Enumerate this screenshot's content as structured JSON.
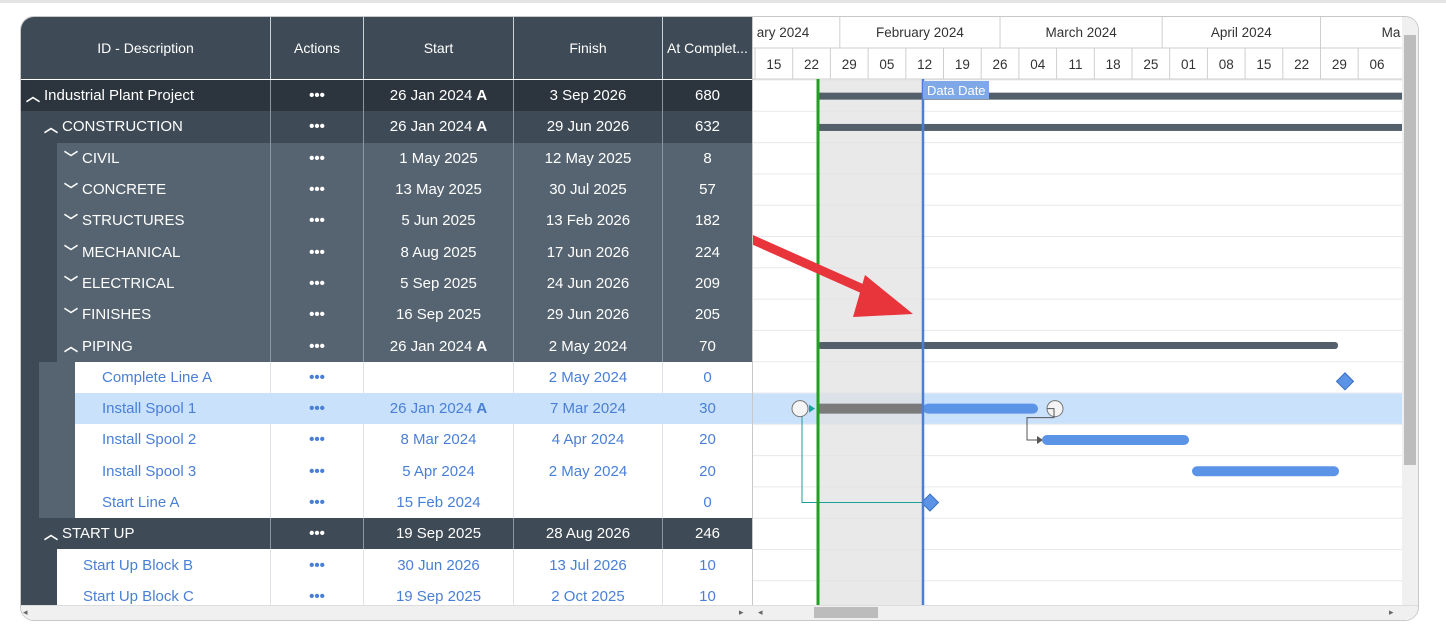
{
  "columns": {
    "desc": "ID - Description",
    "actions": "Actions",
    "start": "Start",
    "finish": "Finish",
    "atc": "At Complet..."
  },
  "rows": [
    {
      "level": 0,
      "chevron": "up",
      "name": "Industrial Plant Project",
      "actions": "•••",
      "start": "26 Jan 2024",
      "start_actual": "A",
      "finish": "3 Sep 2026",
      "atc": "680"
    },
    {
      "level": 1,
      "chevron": "up",
      "name": "CONSTRUCTION",
      "actions": "•••",
      "start": "26 Jan 2024",
      "start_actual": "A",
      "finish": "29 Jun 2026",
      "atc": "632"
    },
    {
      "level": 2,
      "chevron": "down",
      "name": "CIVIL",
      "actions": "•••",
      "start": "1 May 2025",
      "start_actual": "",
      "finish": "12 May 2025",
      "atc": "8"
    },
    {
      "level": 2,
      "chevron": "down",
      "name": "CONCRETE",
      "actions": "•••",
      "start": "13 May 2025",
      "start_actual": "",
      "finish": "30 Jul 2025",
      "atc": "57"
    },
    {
      "level": 2,
      "chevron": "down",
      "name": "STRUCTURES",
      "actions": "•••",
      "start": "5 Jun 2025",
      "start_actual": "",
      "finish": "13 Feb 2026",
      "atc": "182"
    },
    {
      "level": 2,
      "chevron": "down",
      "name": "MECHANICAL",
      "actions": "•••",
      "start": "8 Aug 2025",
      "start_actual": "",
      "finish": "17 Jun 2026",
      "atc": "224"
    },
    {
      "level": 2,
      "chevron": "down",
      "name": "ELECTRICAL",
      "actions": "•••",
      "start": "5 Sep 2025",
      "start_actual": "",
      "finish": "24 Jun 2026",
      "atc": "209"
    },
    {
      "level": 2,
      "chevron": "down",
      "name": "FINISHES",
      "actions": "•••",
      "start": "16 Sep 2025",
      "start_actual": "",
      "finish": "29 Jun 2026",
      "atc": "205"
    },
    {
      "level": 2,
      "chevron": "up",
      "name": "PIPING",
      "actions": "•••",
      "start": "26 Jan 2024",
      "start_actual": "A",
      "finish": "2 May 2024",
      "atc": "70"
    },
    {
      "level": 3,
      "chevron": "",
      "name": "Complete Line A",
      "actions": "•••",
      "start": "",
      "start_actual": "",
      "finish": "2 May 2024",
      "atc": "0"
    },
    {
      "level": 3,
      "chevron": "",
      "name": "Install Spool 1",
      "actions": "•••",
      "start": "26 Jan 2024",
      "start_actual": "A",
      "finish": "7 Mar 2024",
      "atc": "30",
      "selected": true
    },
    {
      "level": 3,
      "chevron": "",
      "name": "Install Spool 2",
      "actions": "•••",
      "start": "8 Mar 2024",
      "start_actual": "",
      "finish": "4 Apr 2024",
      "atc": "20"
    },
    {
      "level": 3,
      "chevron": "",
      "name": "Install Spool 3",
      "actions": "•••",
      "start": "5 Apr 2024",
      "start_actual": "",
      "finish": "2 May 2024",
      "atc": "20"
    },
    {
      "level": 3,
      "chevron": "",
      "name": "Start Line A",
      "actions": "•••",
      "start": "15 Feb 2024",
      "start_actual": "",
      "finish": "",
      "atc": "0"
    },
    {
      "level": 1,
      "chevron": "up",
      "name": "START UP",
      "actions": "•••",
      "start": "19 Sep 2025",
      "start_actual": "",
      "finish": "28 Aug 2026",
      "atc": "246"
    },
    {
      "level": 3,
      "chevron": "",
      "name": "Start Up Block B",
      "actions": "•••",
      "start": "30 Jun 2026",
      "start_actual": "",
      "finish": "13 Jul 2026",
      "atc": "10"
    },
    {
      "level": 3,
      "chevron": "",
      "name": "Start Up Block C",
      "actions": "•••",
      "start": "19 Sep 2025",
      "start_actual": "",
      "finish": "2 Oct 2025",
      "atc": "10"
    }
  ],
  "timeline": {
    "months": [
      "ary 2024",
      "February 2024",
      "March 2024",
      "April 2024",
      "Ma"
    ],
    "weeks": [
      "15",
      "22",
      "29",
      "05",
      "12",
      "19",
      "26",
      "04",
      "11",
      "18",
      "25",
      "01",
      "08",
      "15",
      "22",
      "29",
      "06"
    ],
    "data_date_label": "Data Date"
  },
  "colors": {
    "header_dark": "#2c353e",
    "level1": "#3e4a55",
    "level2": "#556470",
    "activity_text": "#4a7fd6",
    "selected_row": "#c9e1fb",
    "bar_blue": "#5b93e6",
    "bar_summary": "#53606b",
    "progress_gray": "#7b7b7b",
    "today_line": "#22a022",
    "data_date_line": "#4a7fd6",
    "arrow": "#e8353c"
  }
}
